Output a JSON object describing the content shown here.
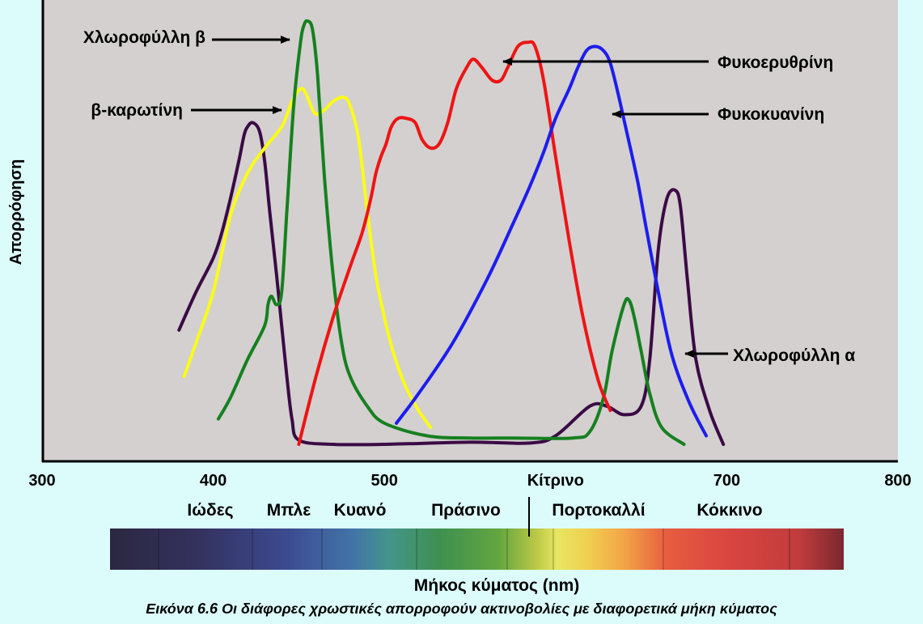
{
  "figure_caption": "Εικόνα 6.6 Οι διάφορες χρωστικές απορροφούν ακτινοβολίες με διαφορετικά μήκη κύματος",
  "colors": {
    "plot_bg": "#d3d0cf",
    "page_bg": "#dcfcfc",
    "chl_a": "#3b0a45",
    "chl_b": "#16801f",
    "beta_carotene": "#fbfb18",
    "phycoerythrin": "#ee1414",
    "phycocyanin": "#1d1dee"
  },
  "chart_data": {
    "type": "line",
    "ylabel": "Απορρόφηση",
    "xlabel": "Μήκος κύματος (nm)",
    "xlim": [
      300,
      800
    ],
    "ylim": [
      0,
      100
    ],
    "xticks": [
      300,
      400,
      500,
      600,
      700,
      800
    ],
    "xtick_labels": [
      "300",
      "400",
      "500",
      "Κίτρινο",
      "700",
      "800"
    ],
    "color_bands": [
      "Ιώδες",
      "Μπλε",
      "Κυανό",
      "Πράσινο",
      "Πορτοκαλλί",
      "Κόκκινο"
    ],
    "series": [
      {
        "name": "Χλωροφύλλη α",
        "color_key": "chl_a",
        "points": [
          [
            380,
            27
          ],
          [
            390,
            36
          ],
          [
            400,
            44
          ],
          [
            405,
            50
          ],
          [
            410,
            58
          ],
          [
            415,
            67
          ],
          [
            418,
            73
          ],
          [
            420,
            75
          ],
          [
            423,
            76
          ],
          [
            427,
            74
          ],
          [
            430,
            67
          ],
          [
            433,
            55
          ],
          [
            437,
            40
          ],
          [
            440,
            28
          ],
          [
            443,
            16
          ],
          [
            446,
            6
          ],
          [
            450,
            1
          ],
          [
            470,
            0
          ],
          [
            500,
            0
          ],
          [
            550,
            0.5
          ],
          [
            585,
            0.3
          ],
          [
            600,
            2
          ],
          [
            620,
            9
          ],
          [
            630,
            9
          ],
          [
            640,
            7
          ],
          [
            650,
            9
          ],
          [
            655,
            20
          ],
          [
            660,
            46
          ],
          [
            665,
            58
          ],
          [
            670,
            60
          ],
          [
            673,
            56
          ],
          [
            677,
            39
          ],
          [
            682,
            20
          ],
          [
            690,
            8
          ],
          [
            698,
            0
          ]
        ]
      },
      {
        "name": "Χλωροφύλλη β",
        "color_key": "chl_b",
        "points": [
          [
            403,
            6
          ],
          [
            410,
            11
          ],
          [
            420,
            20
          ],
          [
            430,
            28
          ],
          [
            432,
            33
          ],
          [
            434,
            35
          ],
          [
            437,
            33
          ],
          [
            440,
            36
          ],
          [
            443,
            55
          ],
          [
            447,
            80
          ],
          [
            451,
            95
          ],
          [
            453,
            99
          ],
          [
            455,
            100
          ],
          [
            458,
            98
          ],
          [
            461,
            87
          ],
          [
            465,
            63
          ],
          [
            470,
            40
          ],
          [
            475,
            24
          ],
          [
            480,
            16
          ],
          [
            490,
            9
          ],
          [
            500,
            5
          ],
          [
            525,
            2
          ],
          [
            550,
            1.5
          ],
          [
            575,
            1.5
          ],
          [
            610,
            1.5
          ],
          [
            620,
            3
          ],
          [
            628,
            11
          ],
          [
            633,
            22
          ],
          [
            640,
            33
          ],
          [
            643,
            34
          ],
          [
            646,
            30
          ],
          [
            650,
            22
          ],
          [
            655,
            12
          ],
          [
            662,
            4
          ],
          [
            675,
            0
          ]
        ]
      },
      {
        "name": "β-καρωτίνη",
        "color_key": "beta_carotene",
        "points": [
          [
            383,
            16
          ],
          [
            390,
            24
          ],
          [
            400,
            36
          ],
          [
            410,
            54
          ],
          [
            420,
            64
          ],
          [
            430,
            70
          ],
          [
            440,
            75
          ],
          [
            446,
            81
          ],
          [
            451,
            84
          ],
          [
            454,
            83
          ],
          [
            457,
            80
          ],
          [
            460,
            78
          ],
          [
            465,
            79
          ],
          [
            470,
            81
          ],
          [
            476,
            82
          ],
          [
            480,
            80
          ],
          [
            485,
            72
          ],
          [
            490,
            55
          ],
          [
            495,
            40
          ],
          [
            500,
            30
          ],
          [
            505,
            22
          ],
          [
            512,
            14
          ],
          [
            520,
            8
          ],
          [
            527,
            4
          ]
        ]
      },
      {
        "name": "Φυκοερυθρίνη",
        "color_key": "phycoerythrin",
        "points": [
          [
            450,
            0
          ],
          [
            460,
            16
          ],
          [
            470,
            30
          ],
          [
            480,
            42
          ],
          [
            487,
            50
          ],
          [
            492,
            58
          ],
          [
            495,
            64
          ],
          [
            498,
            68
          ],
          [
            501,
            71
          ],
          [
            504,
            75
          ],
          [
            508,
            77
          ],
          [
            513,
            77
          ],
          [
            518,
            76
          ],
          [
            522,
            72
          ],
          [
            527,
            70
          ],
          [
            532,
            71
          ],
          [
            537,
            76
          ],
          [
            542,
            84
          ],
          [
            548,
            89
          ],
          [
            552,
            91
          ],
          [
            557,
            89
          ],
          [
            563,
            86
          ],
          [
            568,
            86
          ],
          [
            572,
            89
          ],
          [
            578,
            94
          ],
          [
            584,
            95
          ],
          [
            588,
            94
          ],
          [
            593,
            86
          ],
          [
            600,
            68
          ],
          [
            608,
            48
          ],
          [
            616,
            30
          ],
          [
            625,
            15
          ],
          [
            632,
            8
          ]
        ]
      },
      {
        "name": "Φυκοκυανίνη",
        "color_key": "phycocyanin",
        "points": [
          [
            507,
            5
          ],
          [
            520,
            12
          ],
          [
            540,
            24
          ],
          [
            560,
            39
          ],
          [
            575,
            52
          ],
          [
            585,
            61
          ],
          [
            593,
            69
          ],
          [
            600,
            77
          ],
          [
            608,
            84
          ],
          [
            613,
            89
          ],
          [
            618,
            93
          ],
          [
            623,
            94
          ],
          [
            628,
            93
          ],
          [
            632,
            90
          ],
          [
            637,
            82
          ],
          [
            642,
            73
          ],
          [
            648,
            62
          ],
          [
            653,
            51
          ],
          [
            660,
            36
          ],
          [
            668,
            21
          ],
          [
            678,
            10
          ],
          [
            688,
            2
          ]
        ]
      }
    ],
    "annotations": [
      {
        "text": "Χλωροφύλλη β",
        "series": "Χλωροφύλλη β"
      },
      {
        "text": "β-καρωτίνη",
        "series": "β-καρωτίνη"
      },
      {
        "text": "Φυκοερυθρίνη",
        "series": "Φυκοερυθρίνη"
      },
      {
        "text": "Φυκοκυανίνη",
        "series": "Φυκοκυανίνη"
      },
      {
        "text": "Χλωροφύλλη α",
        "series": "Χλωροφύλλη α"
      }
    ],
    "grid": false
  }
}
